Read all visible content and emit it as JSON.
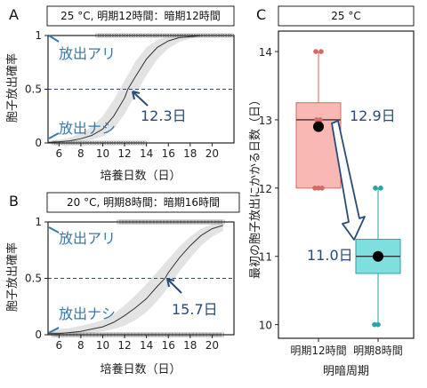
{
  "panels": {
    "A": {
      "letter": "A",
      "header": "25 °C, 明期12時間：暗期12時間",
      "ylabel": "胞子放出確率",
      "xlabel": "培養日数（日）",
      "release_yes": "放出アリ",
      "release_no": "放出ナシ",
      "midpoint_label": "12.3日"
    },
    "B": {
      "letter": "B",
      "header": "20 °C, 明期8時間：暗期16時間",
      "ylabel": "胞子放出確率",
      "xlabel": "培養日数（日）",
      "release_yes": "放出アリ",
      "release_no": "放出ナシ",
      "midpoint_label": "15.7日"
    },
    "C": {
      "letter": "C",
      "header": "25 °C",
      "ylabel": "最初の胞子放出にかかる日数（日）",
      "xlabel": "明暗周期",
      "label1": "12.9日",
      "label2": "11.0日"
    }
  },
  "chart_data": [
    {
      "type": "line",
      "panel": "A",
      "title": "25 °C, 明期12時間：暗期12時間",
      "xlabel": "培養日数（日）",
      "ylabel": "胞子放出確率",
      "xlim": [
        5,
        22
      ],
      "ylim": [
        0,
        1
      ],
      "xticks": [
        6,
        8,
        10,
        12,
        14,
        16,
        18,
        20
      ],
      "yticks": [
        0,
        0.5,
        1
      ],
      "ytick_labels": [
        "0",
        "0.5",
        "1"
      ],
      "series": [
        {
          "x": [
            5,
            6,
            7,
            8,
            9,
            10,
            11,
            12,
            12.3,
            13,
            14,
            15,
            16,
            17,
            18,
            19,
            20,
            21,
            22
          ],
          "y": [
            0.005,
            0.01,
            0.02,
            0.04,
            0.07,
            0.13,
            0.25,
            0.42,
            0.5,
            0.62,
            0.78,
            0.89,
            0.95,
            0.98,
            0.99,
            1.0,
            1.0,
            1.0,
            1.0
          ]
        }
      ],
      "band": {
        "x": [
          5,
          6,
          7,
          8,
          9,
          10,
          11,
          12,
          13,
          14,
          15,
          16,
          17,
          18,
          19,
          20,
          21,
          22
        ],
        "lower": [
          0,
          0,
          0.01,
          0.01,
          0.03,
          0.06,
          0.13,
          0.27,
          0.45,
          0.63,
          0.78,
          0.88,
          0.94,
          0.97,
          0.99,
          1.0,
          1.0,
          1.0
        ],
        "upper": [
          0.02,
          0.03,
          0.05,
          0.09,
          0.15,
          0.25,
          0.4,
          0.58,
          0.76,
          0.89,
          0.96,
          0.99,
          1.0,
          1.0,
          1.0,
          1.0,
          1.0,
          1.0
        ]
      },
      "observations_released": {
        "y": 1,
        "x_from": 9.5,
        "x_to": 22
      },
      "observations_not_released": {
        "y": 0,
        "x_from": 5.5,
        "x_to": 14
      }
    },
    {
      "type": "line",
      "panel": "B",
      "title": "20 °C, 明期8時間：暗期16時間",
      "xlabel": "培養日数（日）",
      "ylabel": "胞子放出確率",
      "xlim": [
        5,
        22
      ],
      "ylim": [
        0,
        1
      ],
      "xticks": [
        6,
        8,
        10,
        12,
        14,
        16,
        18,
        20
      ],
      "yticks": [
        0,
        0.5,
        1
      ],
      "ytick_labels": [
        "0",
        "0.5",
        "1"
      ],
      "series": [
        {
          "x": [
            5,
            6,
            7,
            8,
            9,
            10,
            11,
            12,
            13,
            14,
            15,
            15.7,
            16,
            17,
            18,
            19,
            20,
            21
          ],
          "y": [
            0.01,
            0.01,
            0.02,
            0.03,
            0.05,
            0.07,
            0.11,
            0.17,
            0.24,
            0.32,
            0.43,
            0.5,
            0.55,
            0.68,
            0.79,
            0.88,
            0.94,
            0.97
          ]
        }
      ],
      "band": {
        "x": [
          5,
          6,
          7,
          8,
          9,
          10,
          11,
          12,
          13,
          14,
          15,
          16,
          17,
          18,
          19,
          20,
          21
        ],
        "lower": [
          0,
          0,
          0,
          0.01,
          0.02,
          0.03,
          0.05,
          0.08,
          0.13,
          0.2,
          0.3,
          0.42,
          0.56,
          0.68,
          0.79,
          0.87,
          0.92
        ],
        "upper": [
          0.04,
          0.05,
          0.06,
          0.08,
          0.1,
          0.13,
          0.18,
          0.26,
          0.35,
          0.45,
          0.56,
          0.67,
          0.78,
          0.87,
          0.94,
          0.98,
          1.0
        ]
      },
      "observations_released": {
        "y": 1,
        "x_from": 11.5,
        "x_to": 21
      },
      "observations_not_released": {
        "y": 0,
        "x_from": 5.5,
        "x_to": 21
      }
    },
    {
      "type": "box",
      "panel": "C",
      "title": "25 °C",
      "xlabel": "明暗周期",
      "ylabel": "最初の胞子放出にかかる日数（日）",
      "categories": [
        "明期12時間",
        "明期8時間"
      ],
      "ylim": [
        9.8,
        14.3
      ],
      "yticks": [
        10,
        11,
        12,
        13,
        14
      ],
      "boxes": [
        {
          "category": "明期12時間",
          "min": 12,
          "q1": 12,
          "median": 13,
          "q3": 13.25,
          "max": 14,
          "mean": 12.9,
          "color": "#f9b8b4",
          "edge": "#d46a66",
          "points": [
            14,
            14,
            13,
            13,
            12,
            12,
            12
          ]
        },
        {
          "category": "明期8時間",
          "min": 10,
          "q1": 10.75,
          "median": 11,
          "q3": 11.25,
          "max": 12,
          "mean": 11.0,
          "color": "#7fdede",
          "edge": "#2aa5a5",
          "points": [
            12,
            12,
            11,
            11,
            10,
            10
          ]
        }
      ]
    }
  ]
}
